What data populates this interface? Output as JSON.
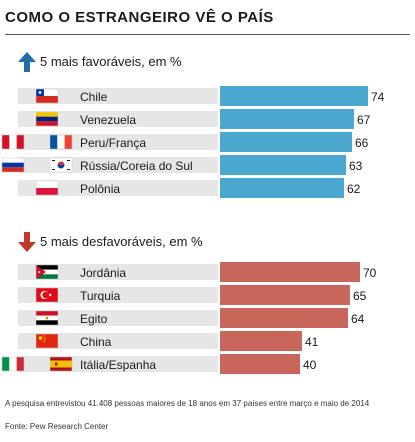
{
  "title": "COMO O ESTRANGEIRO VÊ O PAÍS",
  "colors": {
    "favorable_bar": "#4aa8d0",
    "unfavorable_bar": "#c9665c",
    "up_arrow": "#1f6fa6",
    "down_arrow": "#c0392b",
    "row_band": "#e6e6e6"
  },
  "chart_data": [
    {
      "type": "bar",
      "title": "5 mais favoráveis, em %",
      "categories": [
        "Chile",
        "Venezuela",
        "Peru/França",
        "Rússia/Coreia do Sul",
        "Polônia"
      ],
      "values": [
        74,
        67,
        66,
        63,
        62
      ],
      "flags": [
        [
          "chile"
        ],
        [
          "venezuela"
        ],
        [
          "peru",
          "france"
        ],
        [
          "russia",
          "south-korea"
        ],
        [
          "poland"
        ]
      ]
    },
    {
      "type": "bar",
      "title": "5 mais desfavoráveis, em %",
      "categories": [
        "Jordânia",
        "Turquia",
        "Egito",
        "China",
        "Itália/Espanha"
      ],
      "values": [
        70,
        65,
        64,
        41,
        40
      ],
      "flags": [
        [
          "jordan"
        ],
        [
          "turkey"
        ],
        [
          "egypt"
        ],
        [
          "china"
        ],
        [
          "italy",
          "spain"
        ]
      ]
    }
  ],
  "footnote": "A pesquisa entrevistou 41.408 pessoas maiores de 18 anos em 37 países entre março e maio de 2014",
  "source": "Fonte: Pew Research Center"
}
